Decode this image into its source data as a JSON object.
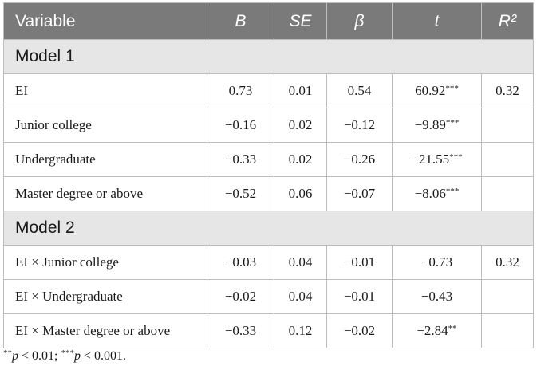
{
  "table": {
    "headers": [
      "Variable",
      "B",
      "SE",
      "β",
      "t",
      "R²"
    ],
    "models": [
      {
        "label": "Model 1",
        "rows": [
          {
            "variable": "EI",
            "b": "0.73",
            "se": "0.01",
            "beta": "0.54",
            "t": "60.92***",
            "r2": "0.32"
          },
          {
            "variable": "Junior college",
            "b": "−0.16",
            "se": "0.02",
            "beta": "−0.12",
            "t": "−9.89***",
            "r2": ""
          },
          {
            "variable": "Undergraduate",
            "b": "−0.33",
            "se": "0.02",
            "beta": "−0.26",
            "t": "−21.55***",
            "r2": ""
          },
          {
            "variable": "Master degree or above",
            "b": "−0.52",
            "se": "0.06",
            "beta": "−0.07",
            "t": "−8.06***",
            "r2": ""
          }
        ]
      },
      {
        "label": "Model 2",
        "rows": [
          {
            "variable": "EI × Junior college",
            "b": "−0.03",
            "se": "0.04",
            "beta": "−0.01",
            "t": "−0.73",
            "r2": "0.32"
          },
          {
            "variable": "EI × Undergraduate",
            "b": "−0.02",
            "se": "0.04",
            "beta": "−0.01",
            "t": "−0.43",
            "r2": ""
          },
          {
            "variable": "EI × Master degree or above",
            "b": "−0.33",
            "se": "0.12",
            "beta": "−0.02",
            "t": "−2.84**",
            "r2": ""
          }
        ]
      }
    ]
  },
  "note": {
    "stars1": "**",
    "p1": "p",
    "text1": " < 0.01; ",
    "stars2": "***",
    "p2": "p",
    "text2": " < 0.001."
  }
}
